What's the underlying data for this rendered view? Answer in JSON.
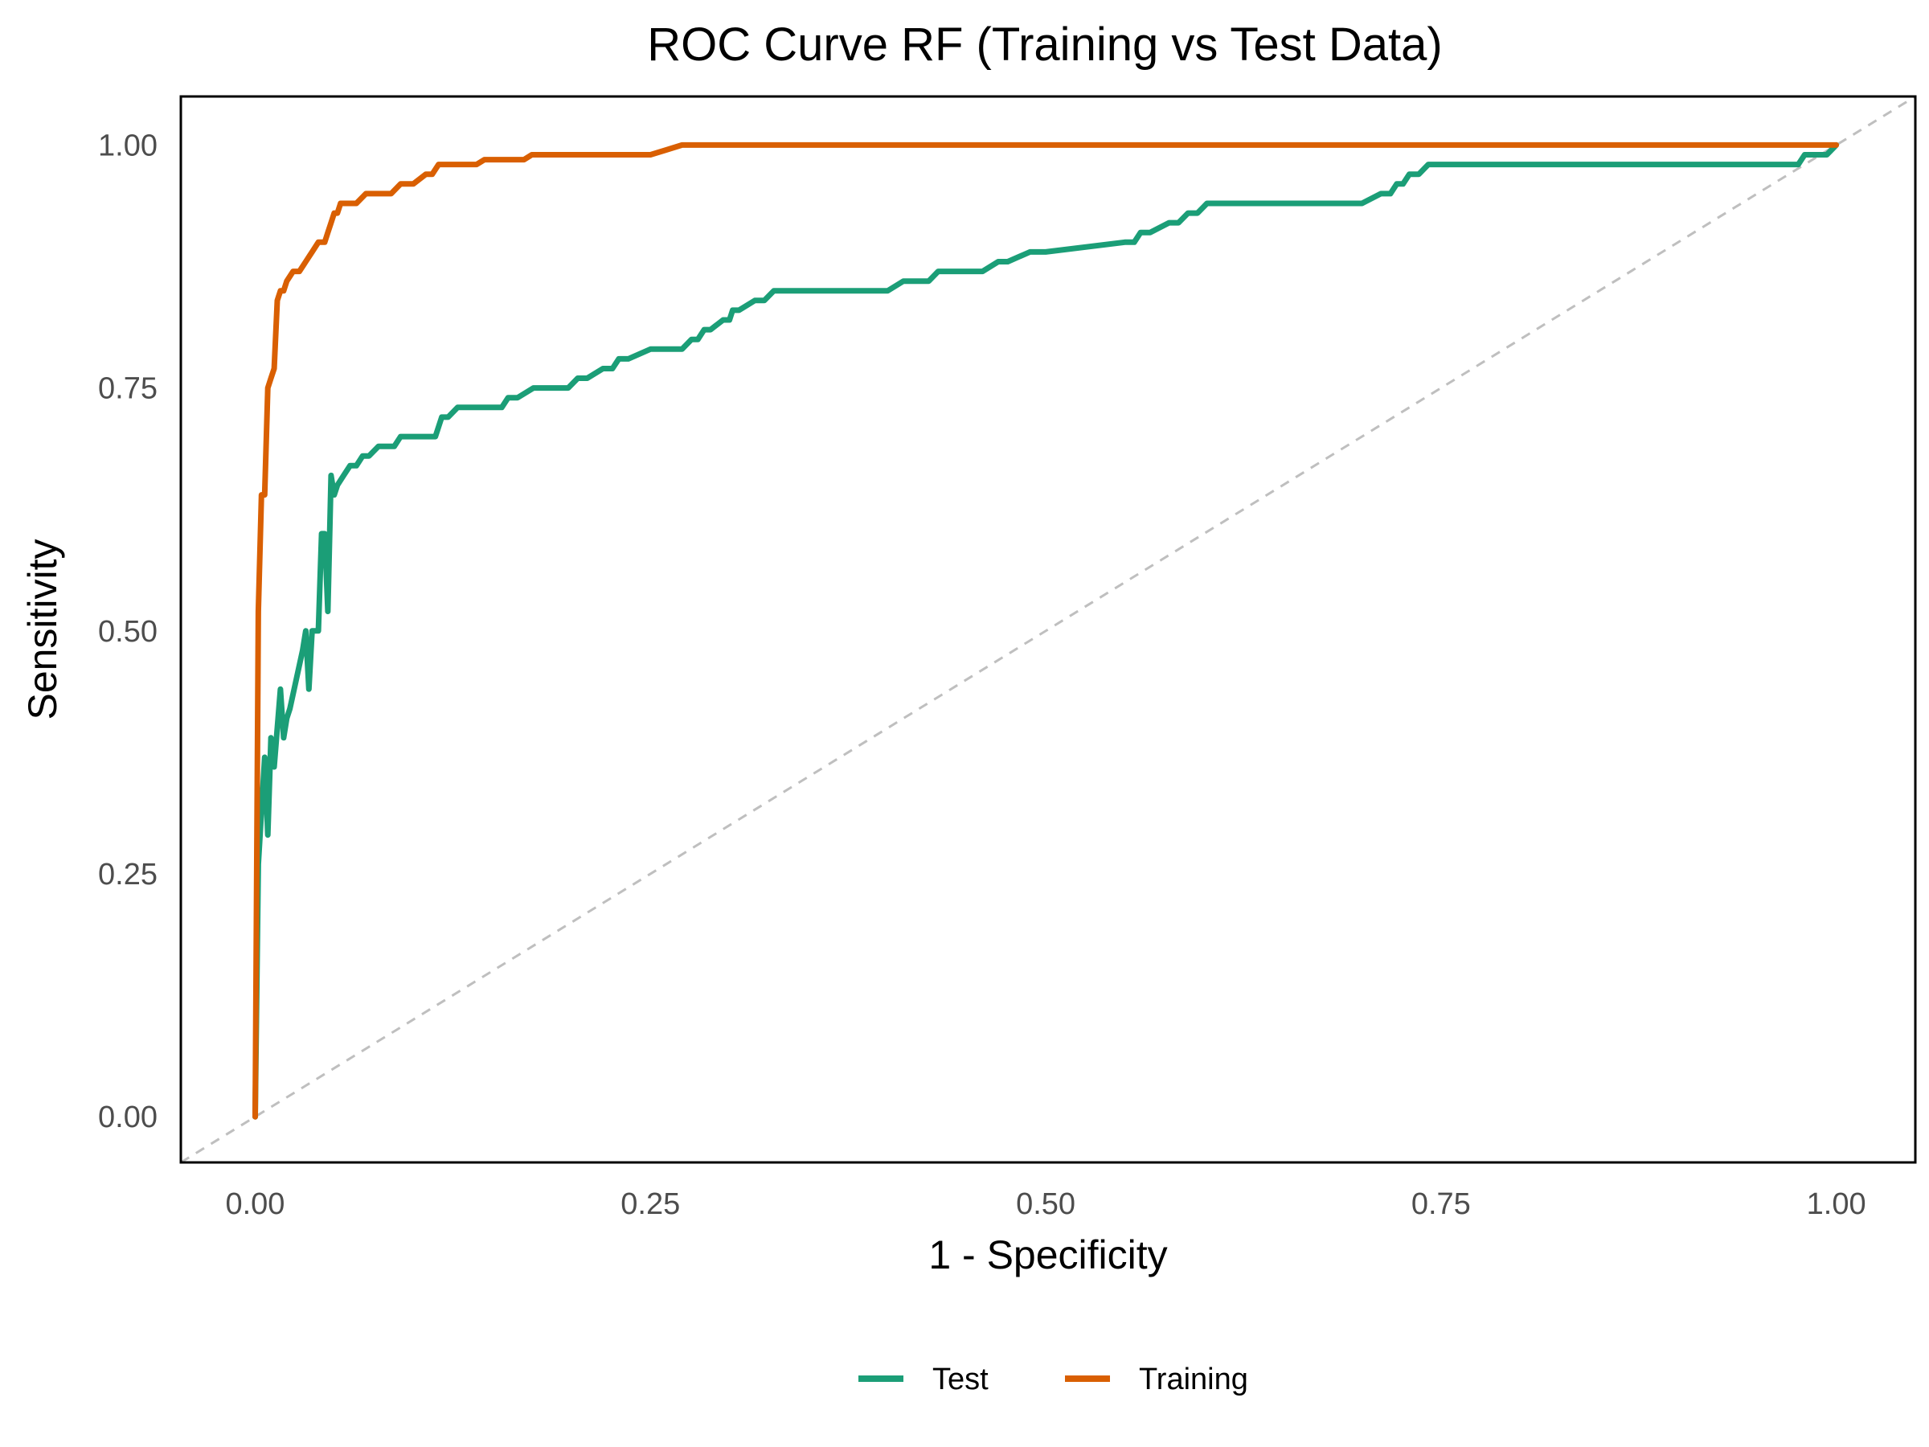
{
  "chart_data": {
    "type": "line",
    "title": "ROC Curve RF (Training vs Test Data)",
    "xlabel": "1 - Specificity",
    "ylabel": "Sensitivity",
    "xlim": [
      -0.047,
      1.05
    ],
    "ylim": [
      -0.047,
      1.05
    ],
    "x_ticks": [
      0,
      0.25,
      0.5,
      0.75,
      1
    ],
    "x_tick_labels": [
      "0.00",
      "0.25",
      "0.50",
      "0.75",
      "1.00"
    ],
    "y_ticks": [
      0,
      0.25,
      0.5,
      0.75,
      1
    ],
    "y_tick_labels": [
      "0.00",
      "0.25",
      "0.50",
      "0.75",
      "1.00"
    ],
    "grid": false,
    "legend_position": "bottom",
    "reference_line": {
      "x": [
        0,
        1
      ],
      "y": [
        0,
        1
      ],
      "color": "#bfbfbf",
      "style": "dashed"
    },
    "series": [
      {
        "name": "Test",
        "color": "#1b9e77",
        "x": [
          0,
          0.002,
          0.006,
          0.008,
          0.01,
          0.012,
          0.016,
          0.018,
          0.02,
          0.022,
          0.026,
          0.03,
          0.032,
          0.034,
          0.036,
          0.04,
          0.042,
          0.044,
          0.046,
          0.048,
          0.05,
          0.052,
          0.056,
          0.06,
          0.064,
          0.068,
          0.072,
          0.078,
          0.084,
          0.088,
          0.092,
          0.096,
          0.1,
          0.106,
          0.11,
          0.114,
          0.118,
          0.122,
          0.128,
          0.15,
          0.156,
          0.16,
          0.166,
          0.176,
          0.198,
          0.204,
          0.21,
          0.22,
          0.226,
          0.23,
          0.236,
          0.25,
          0.27,
          0.276,
          0.28,
          0.284,
          0.288,
          0.296,
          0.3,
          0.302,
          0.306,
          0.316,
          0.322,
          0.328,
          0.34,
          0.4,
          0.41,
          0.414,
          0.42,
          0.426,
          0.432,
          0.436,
          0.44,
          0.446,
          0.46,
          0.47,
          0.476,
          0.49,
          0.496,
          0.5,
          0.55,
          0.556,
          0.56,
          0.566,
          0.578,
          0.584,
          0.59,
          0.596,
          0.602,
          0.612,
          0.62,
          0.7,
          0.712,
          0.718,
          0.722,
          0.726,
          0.73,
          0.736,
          0.742,
          0.97,
          0.976,
          0.98,
          0.986,
          0.99,
          0.994,
          1
        ],
        "y": [
          0,
          0.26,
          0.37,
          0.29,
          0.39,
          0.36,
          0.44,
          0.39,
          0.41,
          0.42,
          0.45,
          0.48,
          0.5,
          0.44,
          0.5,
          0.5,
          0.6,
          0.6,
          0.52,
          0.66,
          0.64,
          0.65,
          0.66,
          0.67,
          0.67,
          0.68,
          0.68,
          0.69,
          0.69,
          0.69,
          0.7,
          0.7,
          0.7,
          0.7,
          0.7,
          0.7,
          0.72,
          0.72,
          0.73,
          0.73,
          0.73,
          0.74,
          0.74,
          0.75,
          0.75,
          0.76,
          0.76,
          0.77,
          0.77,
          0.78,
          0.78,
          0.79,
          0.79,
          0.8,
          0.8,
          0.81,
          0.81,
          0.82,
          0.82,
          0.83,
          0.83,
          0.84,
          0.84,
          0.85,
          0.85,
          0.85,
          0.86,
          0.86,
          0.86,
          0.86,
          0.87,
          0.87,
          0.87,
          0.87,
          0.87,
          0.88,
          0.88,
          0.89,
          0.89,
          0.89,
          0.9,
          0.9,
          0.91,
          0.91,
          0.92,
          0.92,
          0.93,
          0.93,
          0.94,
          0.94,
          0.94,
          0.94,
          0.95,
          0.95,
          0.96,
          0.96,
          0.97,
          0.97,
          0.98,
          0.98,
          0.98,
          0.99,
          0.99,
          0.99,
          0.99,
          1
        ]
      },
      {
        "name": "Training",
        "color": "#d95f02",
        "x": [
          0,
          0.002,
          0.004,
          0.006,
          0.008,
          0.01,
          0.012,
          0.014,
          0.016,
          0.018,
          0.02,
          0.024,
          0.028,
          0.032,
          0.036,
          0.04,
          0.044,
          0.046,
          0.048,
          0.05,
          0.052,
          0.054,
          0.058,
          0.064,
          0.07,
          0.08,
          0.086,
          0.092,
          0.096,
          0.1,
          0.108,
          0.112,
          0.116,
          0.12,
          0.13,
          0.14,
          0.145,
          0.15,
          0.16,
          0.17,
          0.175,
          0.2,
          0.25,
          0.26,
          0.27,
          0.3,
          0.4,
          0.5,
          0.6,
          0.7,
          0.8,
          0.9,
          1
        ],
        "y": [
          0,
          0.52,
          0.64,
          0.64,
          0.75,
          0.76,
          0.77,
          0.84,
          0.85,
          0.85,
          0.86,
          0.87,
          0.87,
          0.88,
          0.89,
          0.9,
          0.9,
          0.91,
          0.92,
          0.93,
          0.93,
          0.94,
          0.94,
          0.94,
          0.95,
          0.95,
          0.95,
          0.96,
          0.96,
          0.96,
          0.97,
          0.97,
          0.98,
          0.98,
          0.98,
          0.98,
          0.985,
          0.985,
          0.985,
          0.985,
          0.99,
          0.99,
          0.99,
          0.995,
          1,
          1,
          1,
          1,
          1,
          1,
          1,
          1,
          1
        ]
      }
    ]
  }
}
